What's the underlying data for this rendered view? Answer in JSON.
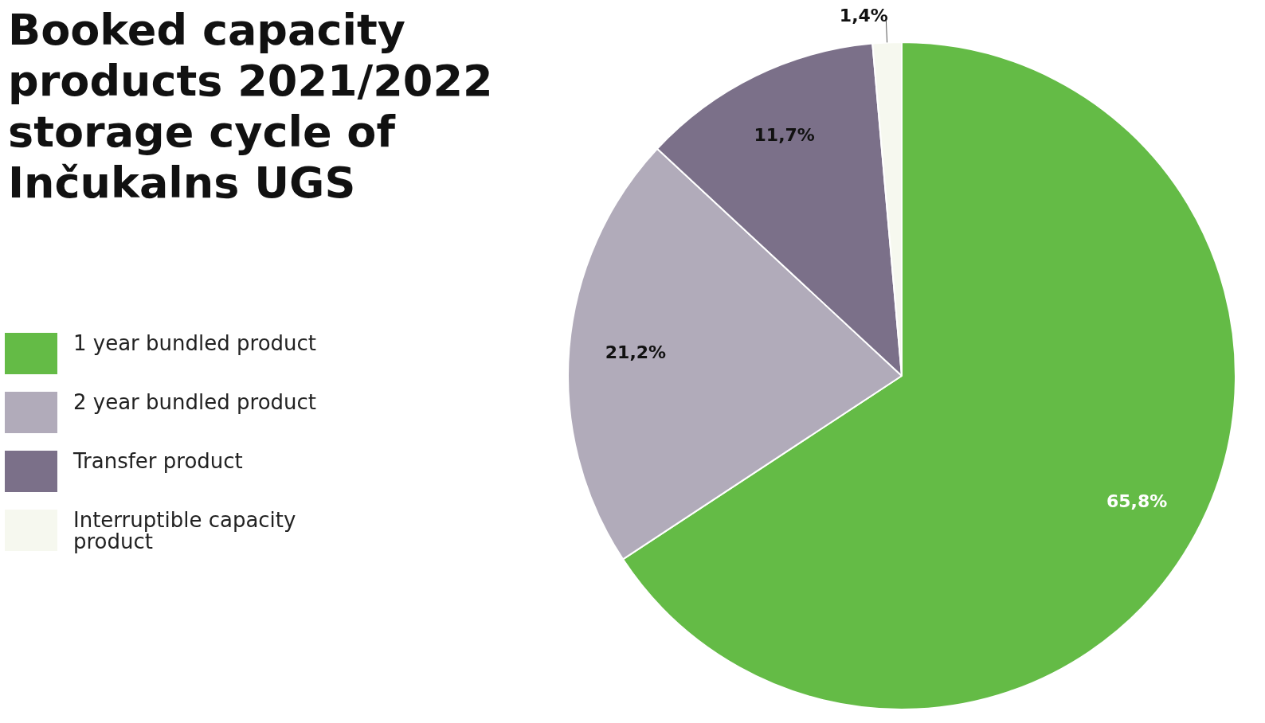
{
  "chart_data": {
    "type": "pie",
    "title": "Booked capacity products 2021/2022 storage cycle of Inčukalns UGS",
    "categories": [
      "1 year bundled product",
      "2 year bundled product",
      "Transfer product",
      "Interruptible capacity product"
    ],
    "values": [
      65.8,
      21.2,
      11.7,
      1.4
    ],
    "colors": [
      "#64bb46",
      "#b1abba",
      "#7b7089",
      "#f6f8ef"
    ],
    "value_labels": [
      "65,8%",
      "21,2%",
      "11,7%",
      "1,4%"
    ],
    "legend": "left"
  }
}
